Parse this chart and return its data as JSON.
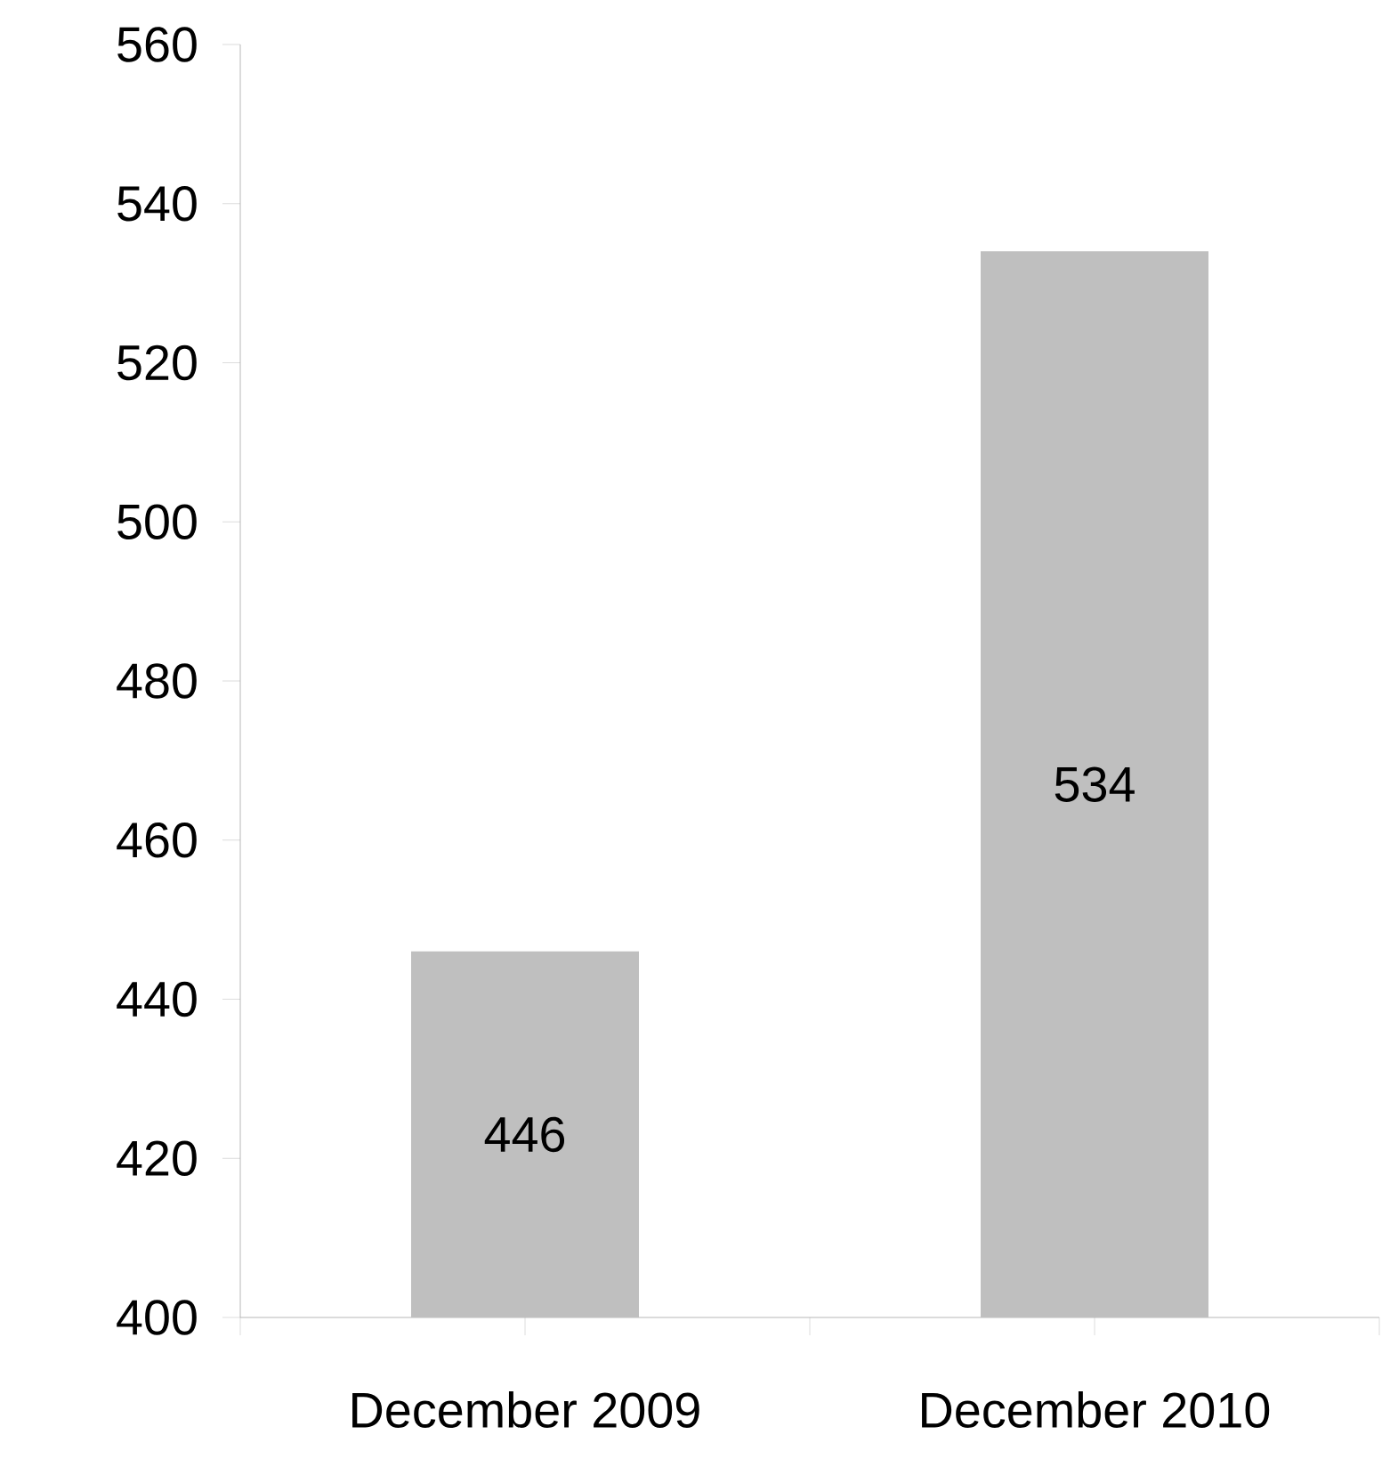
{
  "chart_data": {
    "type": "bar",
    "categories": [
      "December 2009",
      "December 2010"
    ],
    "values": [
      446,
      534
    ],
    "color": "#bfbfbf",
    "ylim": [
      400,
      560
    ],
    "yticks": [
      400,
      420,
      440,
      460,
      480,
      500,
      520,
      540,
      560
    ],
    "data_labels": true
  }
}
